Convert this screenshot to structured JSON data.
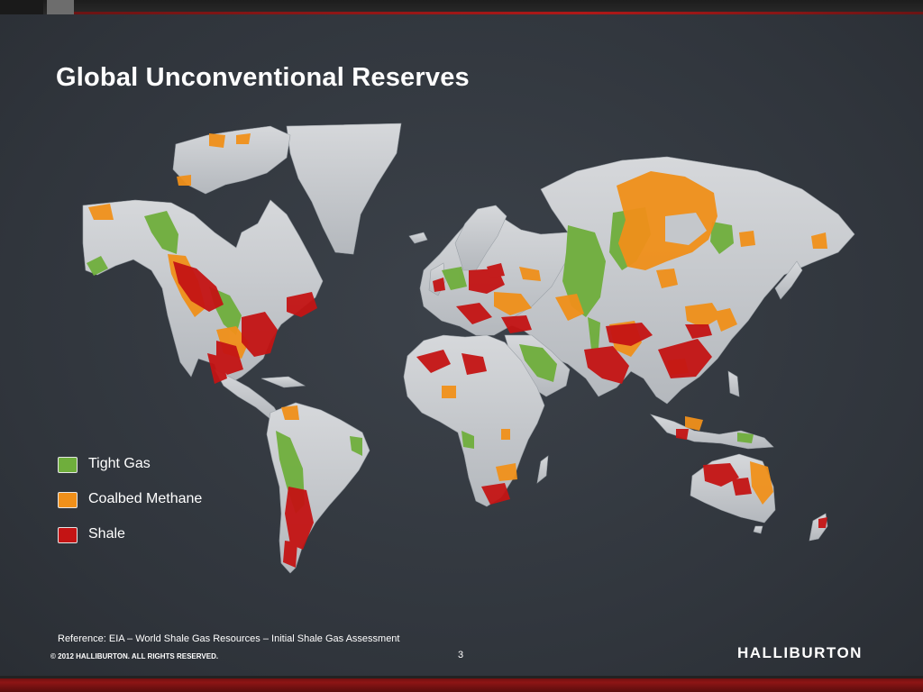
{
  "slide": {
    "title": "Global Unconventional Reserves",
    "reference": "Reference: EIA – World Shale Gas Resources – Initial Shale Gas Assessment",
    "copyright": "© 2012 HALLIBURTON. ALL RIGHTS RESERVED.",
    "page_number": "3",
    "logo_text": "HALLIBURTON"
  },
  "legend": [
    {
      "label": "Tight Gas",
      "color": "#6fae3c"
    },
    {
      "label": "Coalbed Methane",
      "color": "#f0901a"
    },
    {
      "label": "Shale",
      "color": "#c41414"
    }
  ],
  "colors": {
    "land": "#c4c7cb",
    "tight_gas": "#6fae3c",
    "coalbed_methane": "#f0901a",
    "shale": "#c41414",
    "accent_red": "#b01818"
  }
}
